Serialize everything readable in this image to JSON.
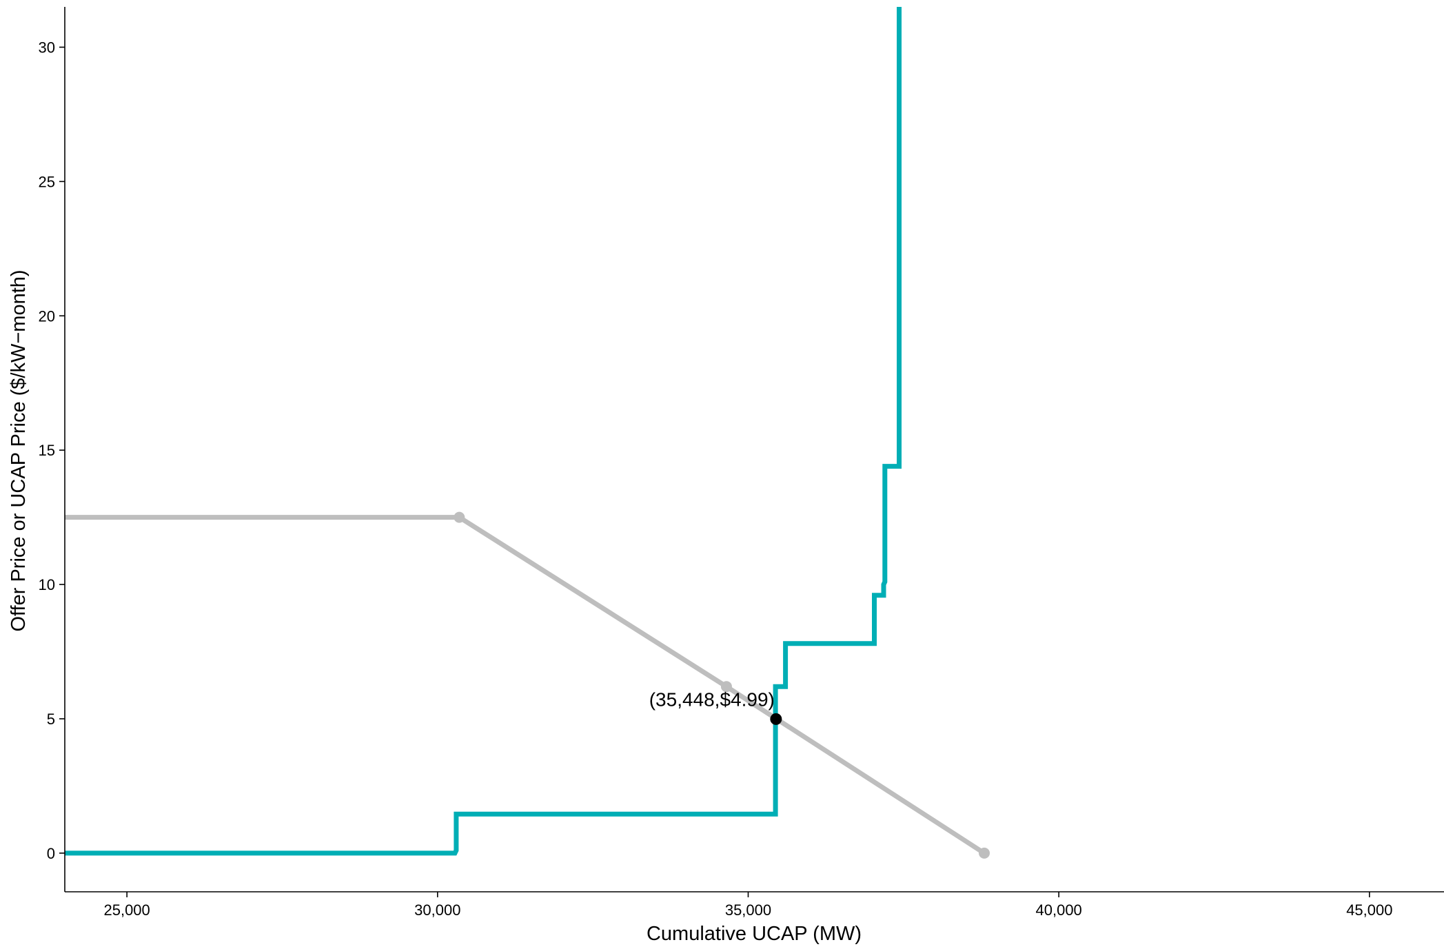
{
  "chart_data": {
    "type": "line",
    "title": "",
    "xlabel": "Cumulative UCAP (MW)",
    "ylabel": "Offer Price or UCAP Price ($/kW−month)",
    "xlim": [
      24000,
      46200
    ],
    "ylim": [
      -1.44,
      31.5
    ],
    "x_ticks": [
      {
        "value": 25000,
        "label": "25,000"
      },
      {
        "value": 30000,
        "label": "30,000"
      },
      {
        "value": 35000,
        "label": "35,000"
      },
      {
        "value": 40000,
        "label": "40,000"
      },
      {
        "value": 45000,
        "label": "45,000"
      }
    ],
    "y_ticks": [
      {
        "value": 0,
        "label": "0"
      },
      {
        "value": 5,
        "label": "5"
      },
      {
        "value": 10,
        "label": "10"
      },
      {
        "value": 15,
        "label": "15"
      },
      {
        "value": 20,
        "label": "20"
      },
      {
        "value": 25,
        "label": "25"
      },
      {
        "value": 30,
        "label": "30"
      }
    ],
    "grid": false,
    "series": [
      {
        "kind": "demand",
        "color": "#BEBEBE",
        "points": [
          {
            "x": 24000,
            "y": 12.5
          },
          {
            "x": 30350,
            "y": 12.5
          },
          {
            "x": 34650,
            "y": 6.2
          },
          {
            "x": 38800,
            "y": 0
          }
        ],
        "markers": [
          {
            "x": 30350,
            "y": 12.5
          },
          {
            "x": 34650,
            "y": 6.2
          },
          {
            "x": 38800,
            "y": 0
          }
        ]
      },
      {
        "kind": "supply",
        "color": "#00AEB5",
        "step": true,
        "points": [
          {
            "x": 24000,
            "y": 0
          },
          {
            "x": 30280,
            "y": 0
          },
          {
            "x": 30300,
            "y": 0.1
          },
          {
            "x": 30300,
            "y": 1.45
          },
          {
            "x": 35440,
            "y": 1.45
          },
          {
            "x": 35440,
            "y": 6.2
          },
          {
            "x": 35600,
            "y": 6.2
          },
          {
            "x": 35600,
            "y": 7.8
          },
          {
            "x": 37030,
            "y": 7.8
          },
          {
            "x": 37030,
            "y": 9.6
          },
          {
            "x": 37180,
            "y": 9.6
          },
          {
            "x": 37180,
            "y": 10.0
          },
          {
            "x": 37200,
            "y": 10.1
          },
          {
            "x": 37200,
            "y": 14.4
          },
          {
            "x": 37430,
            "y": 14.4
          },
          {
            "x": 37430,
            "y": 31.5
          }
        ]
      }
    ],
    "annotations": [
      {
        "x": 35448,
        "y": 4.99,
        "label": "(35,448,$4.99)",
        "color": "#000000"
      }
    ]
  }
}
